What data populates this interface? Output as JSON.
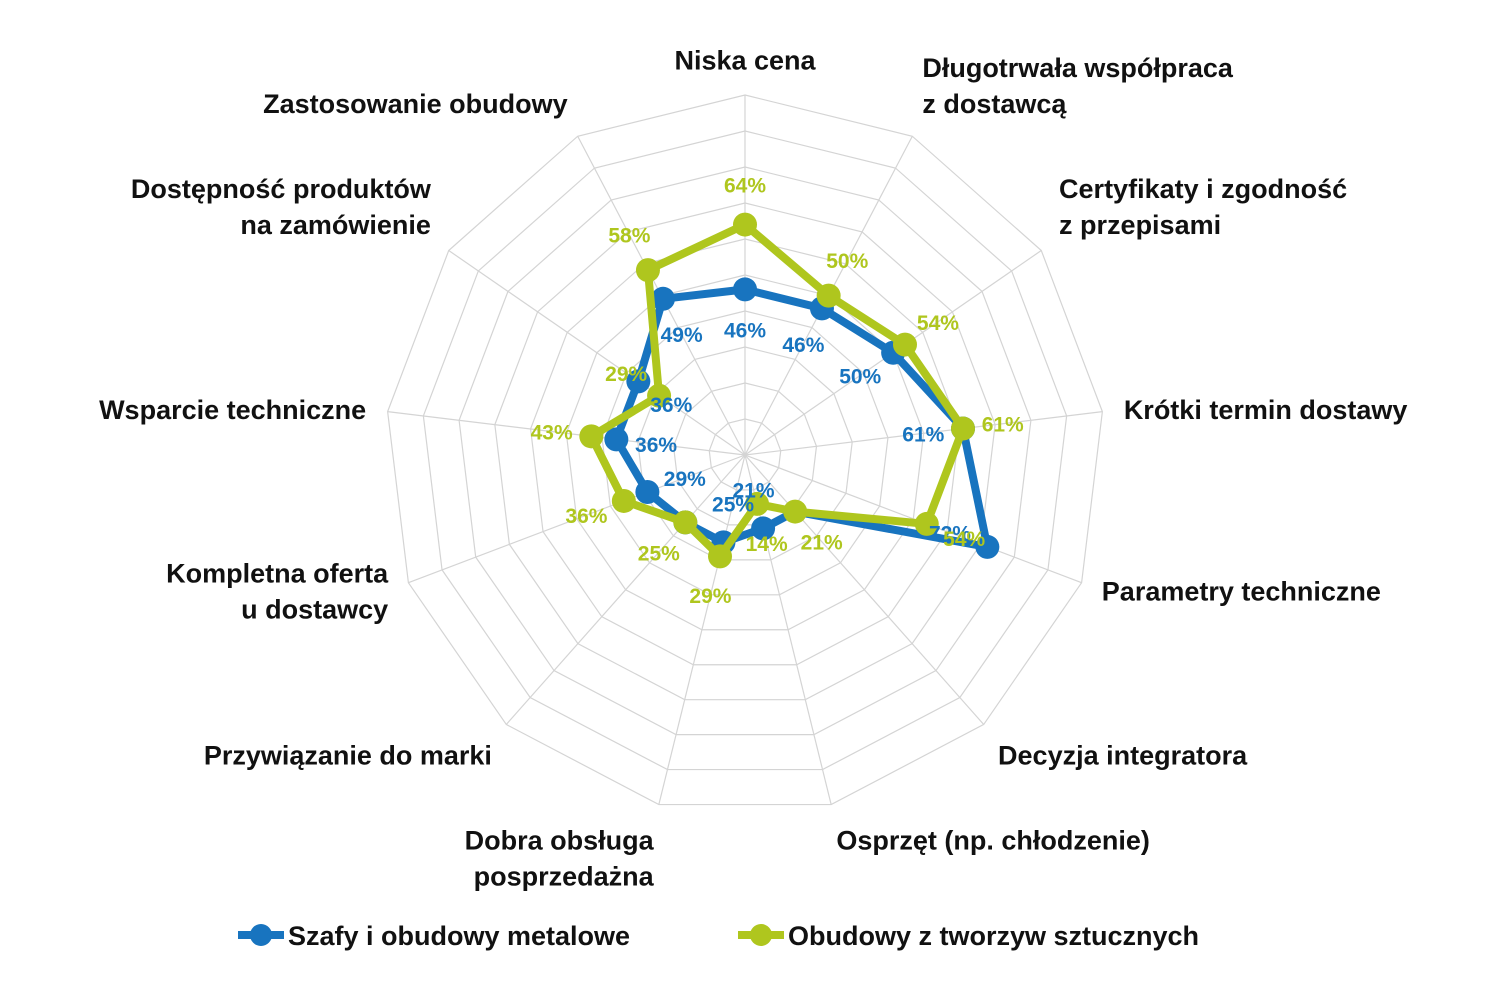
{
  "chart_data": {
    "type": "radar",
    "categories": [
      [
        "Niska cena"
      ],
      [
        "Długotrwała współpraca",
        "z dostawcą"
      ],
      [
        "Certyfikaty i zgodność",
        "z przepisami"
      ],
      [
        "Krótki termin dostawy"
      ],
      [
        "Parametry techniczne"
      ],
      [
        "Decyzja integratora"
      ],
      [
        "Osprzęt (np. chłodzenie)"
      ],
      [
        "Dobra obsługa",
        "posprzedażna"
      ],
      [
        "Przywiązanie do marki"
      ],
      [
        "Kompletna oferta",
        "u dostawcy"
      ],
      [
        "Wsparcie techniczne"
      ],
      [
        "Dostępność produktów",
        "na zamówienie"
      ],
      [
        "Zastosowanie obudowy"
      ]
    ],
    "rlim": [
      0,
      100
    ],
    "grid": true,
    "legend_position": "bottom",
    "series": [
      {
        "name": "Szafy i obudowy metalowe",
        "color": "#1874bf",
        "values": [
          46,
          46,
          50,
          61,
          72,
          21,
          21,
          25,
          25,
          29,
          36,
          36,
          49
        ],
        "labels": [
          "46%",
          "46%",
          "50%",
          "61%",
          "72%",
          "21%",
          "21%",
          "25%",
          "25%",
          "29%",
          "36%",
          "36%",
          "49%"
        ],
        "points_shown": [
          true,
          true,
          true,
          true,
          true,
          false,
          true,
          true,
          true,
          true,
          true,
          true,
          true
        ],
        "labels_shown": [
          true,
          true,
          true,
          true,
          true,
          false,
          true,
          true,
          false,
          true,
          true,
          true,
          true
        ]
      },
      {
        "name": "Obudowy z tworzyw sztucznych",
        "color": "#afc61e",
        "values": [
          64,
          50,
          54,
          61,
          54,
          21,
          14,
          29,
          25,
          36,
          43,
          29,
          58
        ],
        "labels": [
          "64%",
          "50%",
          "54%",
          "61%",
          "54%",
          "21%",
          "14%",
          "29%",
          "25%",
          "36%",
          "43%",
          "29%",
          "58%"
        ],
        "points_shown": [
          true,
          true,
          true,
          true,
          true,
          true,
          true,
          true,
          true,
          true,
          true,
          true,
          true
        ],
        "labels_shown": [
          true,
          true,
          true,
          true,
          true,
          true,
          true,
          true,
          true,
          true,
          true,
          true,
          true
        ]
      }
    ]
  }
}
